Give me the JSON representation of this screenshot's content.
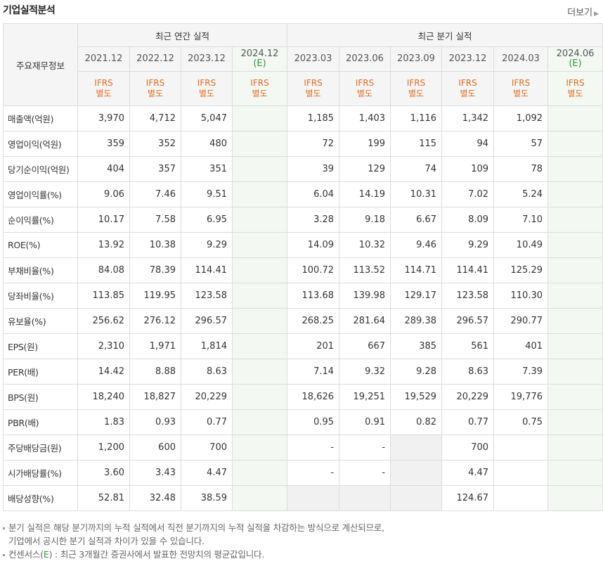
{
  "header": {
    "title": "기업실적분석",
    "more_label": "더보기",
    "more_arrow": "▶"
  },
  "table": {
    "label_header": "주요재무정보",
    "group_annual": "최근 연간 실적",
    "group_quarter": "최근 분기 실적",
    "annual_periods": [
      {
        "label": "2021.12",
        "est": ""
      },
      {
        "label": "2022.12",
        "est": ""
      },
      {
        "label": "2023.12",
        "est": ""
      },
      {
        "label": "2024.12",
        "est": "(E)"
      }
    ],
    "quarter_periods": [
      {
        "label": "2023.03",
        "est": ""
      },
      {
        "label": "2023.06",
        "est": ""
      },
      {
        "label": "2023.09",
        "est": ""
      },
      {
        "label": "2023.12",
        "est": ""
      },
      {
        "label": "2024.03",
        "est": ""
      },
      {
        "label": "2024.06",
        "est": "(E)"
      }
    ],
    "ifrs_line1": "IFRS",
    "ifrs_line2": "별도",
    "rows": [
      {
        "label": "매출액(억원)",
        "values": [
          "3,970",
          "4,712",
          "5,047",
          "",
          "1,185",
          "1,403",
          "1,116",
          "1,342",
          "1,092",
          ""
        ]
      },
      {
        "label": "영업이익(억원)",
        "values": [
          "359",
          "352",
          "480",
          "",
          "72",
          "199",
          "115",
          "94",
          "57",
          ""
        ]
      },
      {
        "label": "당기순이익(억원)",
        "values": [
          "404",
          "357",
          "351",
          "",
          "39",
          "129",
          "74",
          "109",
          "78",
          ""
        ]
      },
      {
        "label": "영업이익률(%)",
        "values": [
          "9.06",
          "7.46",
          "9.51",
          "",
          "6.04",
          "14.19",
          "10.31",
          "7.02",
          "5.24",
          ""
        ]
      },
      {
        "label": "순이익률(%)",
        "values": [
          "10.17",
          "7.58",
          "6.95",
          "",
          "3.28",
          "9.18",
          "6.67",
          "8.09",
          "7.10",
          ""
        ]
      },
      {
        "label": "ROE(%)",
        "values": [
          "13.92",
          "10.38",
          "9.29",
          "",
          "14.09",
          "10.32",
          "9.46",
          "9.29",
          "10.49",
          ""
        ]
      },
      {
        "label": "부채비율(%)",
        "values": [
          "84.08",
          "78.39",
          "114.41",
          "",
          "100.72",
          "113.52",
          "114.71",
          "114.41",
          "125.29",
          ""
        ]
      },
      {
        "label": "당좌비율(%)",
        "values": [
          "113.85",
          "119.95",
          "123.58",
          "",
          "113.68",
          "139.98",
          "129.17",
          "123.58",
          "110.30",
          ""
        ]
      },
      {
        "label": "유보율(%)",
        "values": [
          "256.62",
          "276.12",
          "296.57",
          "",
          "268.25",
          "281.64",
          "289.38",
          "296.57",
          "290.77",
          ""
        ]
      },
      {
        "label": "EPS(원)",
        "values": [
          "2,310",
          "1,971",
          "1,814",
          "",
          "201",
          "667",
          "385",
          "561",
          "401",
          ""
        ]
      },
      {
        "label": "PER(배)",
        "values": [
          "14.42",
          "8.88",
          "8.63",
          "",
          "7.14",
          "9.32",
          "9.28",
          "8.63",
          "7.39",
          ""
        ]
      },
      {
        "label": "BPS(원)",
        "values": [
          "18,240",
          "18,827",
          "20,229",
          "",
          "18,626",
          "19,251",
          "19,529",
          "20,229",
          "19,776",
          ""
        ]
      },
      {
        "label": "PBR(배)",
        "values": [
          "1.83",
          "0.93",
          "0.77",
          "",
          "0.95",
          "0.91",
          "0.82",
          "0.77",
          "0.75",
          ""
        ]
      },
      {
        "label": "주당배당금(원)",
        "values": [
          "1,200",
          "600",
          "700",
          "",
          "-",
          "-",
          "",
          "700",
          "",
          ""
        ]
      },
      {
        "label": "시가배당률(%)",
        "values": [
          "3.60",
          "3.43",
          "4.47",
          "",
          "-",
          "-",
          "",
          "4.47",
          "",
          ""
        ]
      },
      {
        "label": "배당성향(%)",
        "values": [
          "52.81",
          "32.48",
          "38.59",
          "",
          "",
          "",
          "",
          "124.67",
          "",
          ""
        ]
      }
    ]
  },
  "notes": {
    "line1": "분기 실적은 해당 분기까지의 누적 실적에서 직전 분기까지의 누적 실적을 차감하는 방식으로 계산되므로,",
    "line2": "기업에서 공시한 분기 실적과 차이가 있을 수 있습니다.",
    "line3_a": "컨센서스(",
    "line3_e": "E",
    "line3_b": ") : 최근 3개월간 증권사에서 발표한 전망치의 평균값입니다."
  }
}
